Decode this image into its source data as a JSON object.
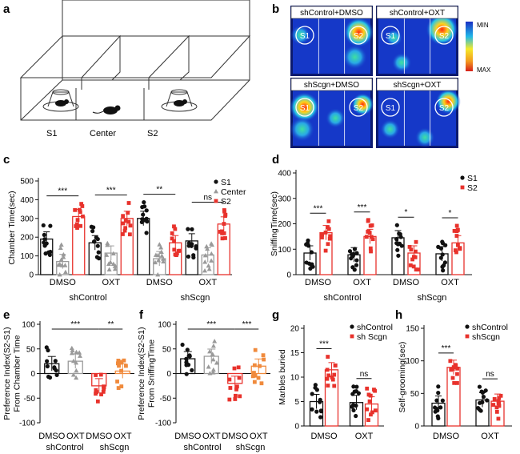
{
  "colors": {
    "s1": "#111111",
    "center": "#9a9a9a",
    "s2": "#e8322c",
    "osh": "#f08a3c",
    "heat_bg": "#1538c8",
    "frame": "#0c1a6e"
  },
  "icons": [
    "mouse-icon",
    "cage-icon"
  ],
  "panels": {
    "a": {
      "letter": "a",
      "labels": [
        "S1",
        "Center",
        "S2"
      ]
    },
    "b": {
      "letter": "b",
      "tiles": [
        {
          "title": "shControl+DMSO",
          "s1": "S1",
          "s2": "S2"
        },
        {
          "title": "shControl+OXT",
          "s1": "S1",
          "s2": "S2"
        },
        {
          "title": "shScgn+DMSO",
          "s1": "S1",
          "s2": "S2"
        },
        {
          "title": "shScgn+OXT",
          "s1": "S1",
          "s2": "S2"
        }
      ],
      "colorbar": {
        "min": "MIN",
        "max": "MAX"
      }
    },
    "c": {
      "letter": "c",
      "groups": [
        "shControl",
        "shScgn"
      ]
    },
    "d": {
      "letter": "d",
      "groups": [
        "shControl",
        "shScgn"
      ]
    },
    "e": {
      "letter": "e",
      "groups": [
        "shControl",
        "shScgn"
      ]
    },
    "f": {
      "letter": "f",
      "groups": [
        "shControl",
        "shScgn"
      ]
    },
    "g": {
      "letter": "g"
    },
    "h": {
      "letter": "h"
    }
  },
  "chart_data": [
    {
      "panel": "c",
      "type": "bar",
      "ylabel": "Chamber Time(sec)",
      "ylim": [
        0,
        500
      ],
      "yticks": [
        0,
        100,
        200,
        300,
        400,
        500
      ],
      "categories": [
        "DMSO",
        "OXT",
        "DMSO",
        "OXT"
      ],
      "series": [
        {
          "name": "S1",
          "values": [
            190,
            170,
            300,
            180
          ]
        },
        {
          "name": "Center",
          "values": [
            70,
            115,
            85,
            105
          ]
        },
        {
          "name": "S2",
          "values": [
            310,
            300,
            170,
            270
          ]
        }
      ],
      "significance": [
        {
          "category": 0,
          "label": "***"
        },
        {
          "category": 1,
          "label": "***"
        },
        {
          "category": 2,
          "label": "**"
        },
        {
          "category": 3,
          "label": "ns"
        }
      ]
    },
    {
      "panel": "d",
      "type": "bar",
      "ylabel": "SniffingTime(sec)",
      "ylim": [
        0,
        400
      ],
      "yticks": [
        0,
        100,
        200,
        300,
        400
      ],
      "categories": [
        "DMSO",
        "OXT",
        "DMSO",
        "OXT"
      ],
      "series": [
        {
          "name": "S1",
          "values": [
            85,
            78,
            145,
            82
          ]
        },
        {
          "name": "S2",
          "values": [
            165,
            150,
            85,
            125
          ]
        }
      ],
      "significance": [
        {
          "category": 0,
          "label": "***"
        },
        {
          "category": 1,
          "label": "***"
        },
        {
          "category": 2,
          "label": "*"
        },
        {
          "category": 3,
          "label": "*"
        }
      ]
    },
    {
      "panel": "e",
      "type": "bar",
      "ylabel": "Preference Index(S2-S1) From Chamber Time",
      "ylim": [
        -100,
        100
      ],
      "yticks": [
        -100,
        -50,
        0,
        50,
        100
      ],
      "categories": [
        "DMSO",
        "OXT",
        "DMSO",
        "OXT"
      ],
      "values": [
        20,
        25,
        -25,
        5
      ],
      "significance": [
        {
          "between": [
            0,
            2
          ],
          "label": "***"
        },
        {
          "between": [
            2,
            3
          ],
          "label": "**"
        }
      ]
    },
    {
      "panel": "f",
      "type": "bar",
      "ylabel": "Preference Index(S2-S1) From SniffingTime",
      "ylim": [
        -100,
        100
      ],
      "yticks": [
        -100,
        -50,
        0,
        50,
        100
      ],
      "categories": [
        "DMSO",
        "OXT",
        "DMSO",
        "OXT"
      ],
      "values": [
        30,
        35,
        -20,
        15
      ],
      "significance": [
        {
          "between": [
            0,
            2
          ],
          "label": "***"
        },
        {
          "between": [
            2,
            3
          ],
          "label": "***"
        }
      ]
    },
    {
      "panel": "g",
      "type": "bar",
      "ylabel": "Marbles buried",
      "ylim": [
        0,
        20
      ],
      "yticks": [
        0,
        5,
        10,
        15,
        20
      ],
      "categories": [
        "DMSO",
        "OXT"
      ],
      "series": [
        {
          "name": "shControl",
          "values": [
            5,
            4.8
          ]
        },
        {
          "name": "sh Scgn",
          "values": [
            11.5,
            4.5
          ]
        }
      ],
      "significance": [
        {
          "category": 0,
          "label": "***"
        },
        {
          "category": 1,
          "label": "ns"
        }
      ]
    },
    {
      "panel": "h",
      "type": "bar",
      "ylabel": "Self-grooming(sec)",
      "ylim": [
        0,
        150
      ],
      "yticks": [
        0,
        50,
        100,
        150
      ],
      "categories": [
        "DMSO",
        "OXT"
      ],
      "series": [
        {
          "name": "shControl",
          "values": [
            35,
            40
          ]
        },
        {
          "name": "shScgn",
          "values": [
            90,
            38
          ]
        }
      ],
      "significance": [
        {
          "category": 0,
          "label": "***"
        },
        {
          "category": 1,
          "label": "ns"
        }
      ]
    }
  ]
}
